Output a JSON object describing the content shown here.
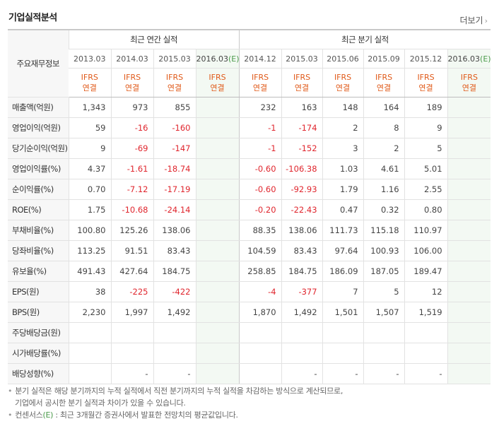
{
  "header": {
    "title": "기업실적분석",
    "more_label": "더보기"
  },
  "table": {
    "label_header": "주요재무정보",
    "annual_group": "최근 연간 실적",
    "quarter_group": "최근 분기 실적",
    "annual_periods": [
      "2013.03",
      "2014.03",
      "2015.03",
      "2016.03"
    ],
    "annual_est_suffix": "(E)",
    "quarter_periods": [
      "2014.12",
      "2015.03",
      "2015.06",
      "2015.09",
      "2015.12",
      "2016.03"
    ],
    "quarter_est_suffix": "(E)",
    "ifrs_line1": "IFRS",
    "ifrs_line2": "연결",
    "rows": [
      {
        "label": "매출액(억원)",
        "annual": [
          "1,343",
          "973",
          "855",
          ""
        ],
        "quarter": [
          "232",
          "163",
          "148",
          "164",
          "189",
          ""
        ]
      },
      {
        "label": "영업이익(억원)",
        "annual": [
          "59",
          "-16",
          "-160",
          ""
        ],
        "quarter": [
          "-1",
          "-174",
          "2",
          "8",
          "9",
          ""
        ]
      },
      {
        "label": "당기순이익(억원)",
        "annual": [
          "9",
          "-69",
          "-147",
          ""
        ],
        "quarter": [
          "-1",
          "-152",
          "3",
          "2",
          "5",
          ""
        ]
      },
      {
        "label": "영업이익률(%)",
        "annual": [
          "4.37",
          "-1.61",
          "-18.74",
          ""
        ],
        "quarter": [
          "-0.60",
          "-106.38",
          "1.03",
          "4.61",
          "5.01",
          ""
        ]
      },
      {
        "label": "순이익률(%)",
        "annual": [
          "0.70",
          "-7.12",
          "-17.19",
          ""
        ],
        "quarter": [
          "-0.60",
          "-92.93",
          "1.79",
          "1.16",
          "2.55",
          ""
        ]
      },
      {
        "label": "ROE(%)",
        "annual": [
          "1.75",
          "-10.68",
          "-24.14",
          ""
        ],
        "quarter": [
          "-0.20",
          "-22.43",
          "0.47",
          "0.32",
          "0.80",
          ""
        ]
      },
      {
        "label": "부채비율(%)",
        "annual": [
          "100.80",
          "125.26",
          "138.06",
          ""
        ],
        "quarter": [
          "88.35",
          "138.06",
          "111.73",
          "115.18",
          "110.97",
          ""
        ]
      },
      {
        "label": "당좌비율(%)",
        "annual": [
          "113.25",
          "91.51",
          "83.43",
          ""
        ],
        "quarter": [
          "104.59",
          "83.43",
          "97.64",
          "100.93",
          "106.00",
          ""
        ]
      },
      {
        "label": "유보율(%)",
        "annual": [
          "491.43",
          "427.64",
          "184.75",
          ""
        ],
        "quarter": [
          "258.85",
          "184.75",
          "186.09",
          "187.05",
          "189.47",
          ""
        ]
      },
      {
        "label": "EPS(원)",
        "annual": [
          "38",
          "-225",
          "-422",
          ""
        ],
        "quarter": [
          "-4",
          "-377",
          "7",
          "5",
          "12",
          ""
        ]
      },
      {
        "label": "BPS(원)",
        "annual": [
          "2,230",
          "1,997",
          "1,492",
          ""
        ],
        "quarter": [
          "1,870",
          "1,492",
          "1,501",
          "1,507",
          "1,519",
          ""
        ]
      },
      {
        "label": "주당배당금(원)",
        "annual": [
          "",
          "",
          "",
          ""
        ],
        "quarter": [
          "",
          "",
          "",
          "",
          "",
          ""
        ]
      },
      {
        "label": "시가배당률(%)",
        "annual": [
          "",
          "",
          "",
          ""
        ],
        "quarter": [
          "",
          "",
          "",
          "",
          "",
          ""
        ]
      },
      {
        "label": "배당성향(%)",
        "annual": [
          "",
          "-",
          "-",
          ""
        ],
        "quarter": [
          "",
          "-",
          "-",
          "-",
          "-",
          ""
        ]
      }
    ]
  },
  "notes": {
    "line1": "분기 실적은 해당 분기까지의 누적 실적에서 직전 분기까지의 누적 실적을 차감하는 방식으로 계산되므로,",
    "line2": "기업에서 공시한 분기 실적과 차이가 있을 수 있습니다.",
    "line3_pre": "컨센서스",
    "line3_e": "(E)",
    "line3_post": " : 최근 3개월간 증권사에서 발표한 전망치의 평균값입니다."
  },
  "colors": {
    "negative": "#e0262e",
    "ifrs": "#e05a1a",
    "estimate_bg": "#f3f9f3",
    "estimate_mark": "#4a9a4a"
  }
}
